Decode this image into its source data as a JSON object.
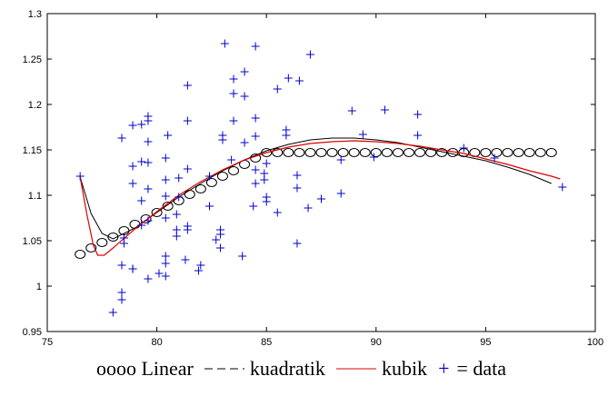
{
  "chart_data": {
    "type": "scatter",
    "title": "",
    "xlabel": "",
    "ylabel": "",
    "xlim": [
      75,
      100
    ],
    "ylim": [
      0.95,
      1.3
    ],
    "xticks": [
      75,
      80,
      85,
      90,
      95,
      100
    ],
    "yticks": [
      0.95,
      1,
      1.05,
      1.1,
      1.15,
      1.2,
      1.25,
      1.3
    ],
    "xtick_labels": [
      "75",
      "80",
      "85",
      "90",
      "95",
      "100"
    ],
    "ytick_labels": [
      "0.95",
      "1",
      "1.05",
      "1.1",
      "1.15",
      "1.2",
      "1.25",
      "1.3"
    ],
    "grid": false,
    "legend_position": "bottom",
    "colors": {
      "data": "#0000cc",
      "kubik": "#dd0000",
      "kuadratik": "#000000",
      "linear": "#000000"
    },
    "series": [
      {
        "name": "data",
        "kind": "scatter",
        "marker": "+",
        "points": [
          [
            76.5,
            1.121
          ],
          [
            78,
            0.971
          ],
          [
            78.4,
            0.985
          ],
          [
            78.4,
            0.993
          ],
          [
            78.4,
            1.023
          ],
          [
            78.5,
            1.047
          ],
          [
            78.5,
            1.053
          ],
          [
            78.4,
            1.163
          ],
          [
            78.9,
            1.019
          ],
          [
            78.9,
            1.019
          ],
          [
            78.9,
            1.113
          ],
          [
            78.9,
            1.132
          ],
          [
            78.9,
            1.177
          ],
          [
            79.3,
            1.067
          ],
          [
            79.3,
            1.094
          ],
          [
            79.3,
            1.137
          ],
          [
            79.3,
            1.178
          ],
          [
            79.6,
            1.008
          ],
          [
            79.6,
            1.072
          ],
          [
            79.6,
            1.107
          ],
          [
            79.6,
            1.136
          ],
          [
            79.6,
            1.159
          ],
          [
            79.6,
            1.182
          ],
          [
            79.6,
            1.187
          ],
          [
            80.1,
            1.014
          ],
          [
            80.4,
            1.011
          ],
          [
            80.4,
            1.025
          ],
          [
            80.4,
            1.033
          ],
          [
            80.4,
            1.075
          ],
          [
            80.4,
            1.099
          ],
          [
            80.4,
            1.117
          ],
          [
            80.4,
            1.141
          ],
          [
            80.5,
            1.166
          ],
          [
            80.9,
            1.055
          ],
          [
            80.9,
            1.062
          ],
          [
            80.9,
            1.079
          ],
          [
            81,
            1.098
          ],
          [
            81,
            1.119
          ],
          [
            81.3,
            1.029
          ],
          [
            81.4,
            1.062
          ],
          [
            81.4,
            1.066
          ],
          [
            81.4,
            1.129
          ],
          [
            81.4,
            1.182
          ],
          [
            81.4,
            1.221
          ],
          [
            81.9,
            1.017
          ],
          [
            82,
            1.023
          ],
          [
            82.4,
            1.088
          ],
          [
            82.4,
            1.121
          ],
          [
            82.7,
            1.051
          ],
          [
            82.9,
            1.042
          ],
          [
            82.9,
            1.057
          ],
          [
            82.9,
            1.062
          ],
          [
            83,
            1.161
          ],
          [
            83,
            1.166
          ],
          [
            83.1,
            1.267
          ],
          [
            83.4,
            1.139
          ],
          [
            83.5,
            1.182
          ],
          [
            83.5,
            1.212
          ],
          [
            83.5,
            1.228
          ],
          [
            83.9,
            1.033
          ],
          [
            84,
            1.158
          ],
          [
            84,
            1.209
          ],
          [
            84,
            1.236
          ],
          [
            84.4,
            1.088
          ],
          [
            84.5,
            1.113
          ],
          [
            84.5,
            1.128
          ],
          [
            84.5,
            1.165
          ],
          [
            84.5,
            1.185
          ],
          [
            84.5,
            1.264
          ],
          [
            84.9,
            1.117
          ],
          [
            84.9,
            1.124
          ],
          [
            85,
            1.098
          ],
          [
            85,
            1.135
          ],
          [
            85,
            1.093
          ],
          [
            85.5,
            1.081
          ],
          [
            85.5,
            1.217
          ],
          [
            85.9,
            1.166
          ],
          [
            85.9,
            1.172
          ],
          [
            86,
            1.229
          ],
          [
            86.4,
            1.047
          ],
          [
            86.4,
            1.108
          ],
          [
            86.4,
            1.122
          ],
          [
            86.5,
            1.226
          ],
          [
            86.9,
            1.086
          ],
          [
            87,
            1.255
          ],
          [
            87.5,
            1.096
          ],
          [
            88.4,
            1.139
          ],
          [
            88.4,
            1.102
          ],
          [
            88.9,
            1.193
          ],
          [
            89.4,
            1.167
          ],
          [
            89.9,
            1.142
          ],
          [
            90.4,
            1.194
          ],
          [
            91.9,
            1.166
          ],
          [
            91.9,
            1.189
          ],
          [
            94,
            1.152
          ],
          [
            95.4,
            1.141
          ],
          [
            98.5,
            1.109
          ]
        ]
      },
      {
        "name": "Linear",
        "kind": "circles",
        "points": [
          [
            76.5,
            1.035
          ],
          [
            77,
            1.042
          ],
          [
            77.5,
            1.048
          ],
          [
            78,
            1.054
          ],
          [
            78.5,
            1.061
          ],
          [
            79,
            1.068
          ],
          [
            79.5,
            1.074
          ],
          [
            80,
            1.081
          ],
          [
            80.5,
            1.088
          ],
          [
            81,
            1.094
          ],
          [
            81.5,
            1.101
          ],
          [
            82,
            1.107
          ],
          [
            82.5,
            1.114
          ],
          [
            83,
            1.121
          ],
          [
            83.5,
            1.127
          ],
          [
            84,
            1.134
          ],
          [
            84.5,
            1.141
          ],
          [
            85,
            1.147
          ],
          [
            85.5,
            1.147
          ],
          [
            86,
            1.147
          ],
          [
            86.5,
            1.147
          ],
          [
            87,
            1.147
          ],
          [
            87.5,
            1.147
          ],
          [
            88,
            1.147
          ],
          [
            88.5,
            1.147
          ],
          [
            89,
            1.147
          ],
          [
            89.5,
            1.147
          ],
          [
            90,
            1.147
          ],
          [
            90.5,
            1.147
          ],
          [
            91,
            1.147
          ],
          [
            91.5,
            1.147
          ],
          [
            92,
            1.147
          ],
          [
            92.5,
            1.147
          ],
          [
            93,
            1.147
          ],
          [
            93.5,
            1.147
          ],
          [
            94,
            1.147
          ],
          [
            94.5,
            1.147
          ],
          [
            95,
            1.147
          ],
          [
            95.5,
            1.147
          ],
          [
            96,
            1.147
          ],
          [
            96.5,
            1.147
          ],
          [
            97,
            1.147
          ],
          [
            97.5,
            1.147
          ],
          [
            98,
            1.147
          ]
        ]
      },
      {
        "name": "kuadratik",
        "kind": "line",
        "points": [
          [
            76.5,
            1.12
          ],
          [
            77,
            1.08
          ],
          [
            77.5,
            1.058
          ],
          [
            78,
            1.052
          ],
          [
            79,
            1.064
          ],
          [
            80,
            1.081
          ],
          [
            81,
            1.098
          ],
          [
            82,
            1.113
          ],
          [
            83,
            1.127
          ],
          [
            84,
            1.139
          ],
          [
            85,
            1.149
          ],
          [
            86,
            1.156
          ],
          [
            87,
            1.161
          ],
          [
            88,
            1.163
          ],
          [
            89,
            1.163
          ],
          [
            90,
            1.161
          ],
          [
            91,
            1.158
          ],
          [
            92,
            1.153
          ],
          [
            93,
            1.148
          ],
          [
            94,
            1.143
          ],
          [
            95,
            1.138
          ],
          [
            96,
            1.131
          ],
          [
            97,
            1.123
          ],
          [
            98,
            1.113
          ]
        ]
      },
      {
        "name": "kubik",
        "kind": "line",
        "points": [
          [
            76.5,
            1.12
          ],
          [
            76.8,
            1.08
          ],
          [
            77.1,
            1.045
          ],
          [
            77.3,
            1.034
          ],
          [
            77.6,
            1.034
          ],
          [
            78,
            1.042
          ],
          [
            79,
            1.063
          ],
          [
            80,
            1.082
          ],
          [
            81,
            1.1
          ],
          [
            82,
            1.115
          ],
          [
            83,
            1.128
          ],
          [
            84,
            1.139
          ],
          [
            85,
            1.147
          ],
          [
            86,
            1.153
          ],
          [
            87,
            1.157
          ],
          [
            88,
            1.159
          ],
          [
            89,
            1.16
          ],
          [
            90,
            1.159
          ],
          [
            91,
            1.157
          ],
          [
            92,
            1.154
          ],
          [
            93,
            1.15
          ],
          [
            94,
            1.146
          ],
          [
            95,
            1.14
          ],
          [
            96,
            1.134
          ],
          [
            97,
            1.127
          ],
          [
            98,
            1.121
          ],
          [
            98.4,
            1.118
          ]
        ]
      }
    ]
  },
  "legend": {
    "linear_marker": "oooo",
    "linear_label": "Linear",
    "kuadratik_label": "kuadratik",
    "kubik_label": "kubik",
    "data_marker": "+",
    "data_label": "= data"
  }
}
